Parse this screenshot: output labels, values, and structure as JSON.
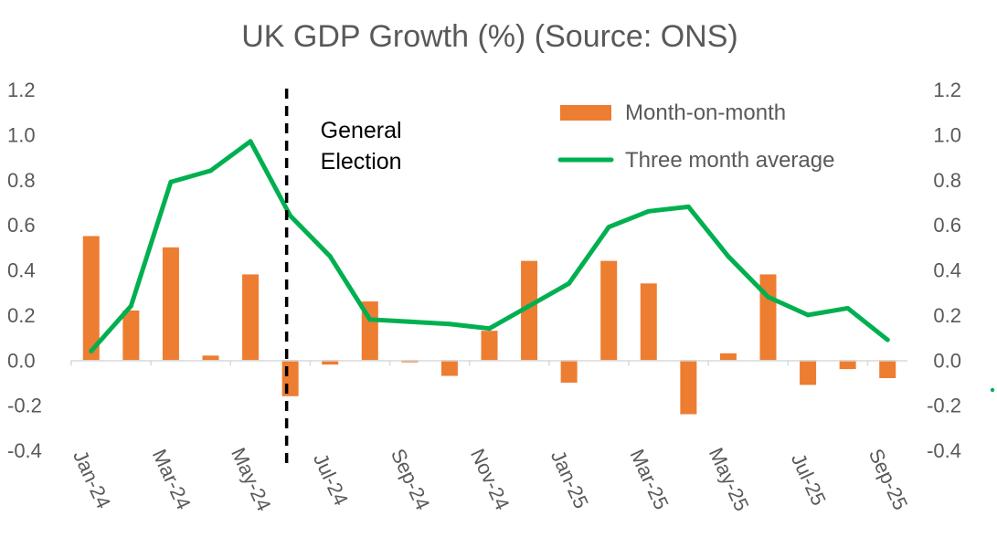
{
  "chart_data": {
    "type": "bar",
    "title": "UK GDP Growth (%) (Source: ONS)",
    "xlabel": "",
    "ylabel": "",
    "ylim": [
      -0.4,
      1.2
    ],
    "y2lim": [
      -0.4,
      1.2
    ],
    "yticks": [
      "1.2",
      "1.0",
      "0.8",
      "0.6",
      "0.4",
      "0.2",
      "0.0",
      "-0.2",
      "-0.4"
    ],
    "categories": [
      "Jan-24",
      "Feb-24",
      "Mar-24",
      "Apr-24",
      "May-24",
      "Jun-24",
      "Jul-24",
      "Aug-24",
      "Sep-24",
      "Oct-24",
      "Nov-24",
      "Dec-24",
      "Jan-25",
      "Feb-25",
      "Mar-25",
      "Apr-25",
      "May-25",
      "Jun-25",
      "Jul-25",
      "Aug-25",
      "Sep-25"
    ],
    "x_tick_labels": [
      "Jan-24",
      "Mar-24",
      "May-24",
      "Jul-24",
      "Sep-24",
      "Nov-24",
      "Jan-25",
      "Mar-25",
      "May-25",
      "Jul-25",
      "Sep-25"
    ],
    "series": [
      {
        "name": "Month-on-month",
        "type": "bar",
        "color": "#ED7D31",
        "values": [
          0.55,
          0.22,
          0.5,
          0.02,
          0.38,
          -0.16,
          -0.02,
          0.26,
          -0.01,
          -0.07,
          0.13,
          0.44,
          -0.1,
          0.44,
          0.34,
          -0.24,
          0.03,
          0.38,
          -0.11,
          -0.04,
          -0.08
        ]
      },
      {
        "name": "Three month average",
        "type": "line",
        "color": "#00B050",
        "values": [
          0.04,
          0.24,
          0.79,
          0.84,
          0.97,
          0.64,
          0.46,
          0.18,
          0.17,
          0.16,
          0.14,
          0.24,
          0.34,
          0.59,
          0.66,
          0.68,
          0.46,
          0.28,
          0.2,
          0.23,
          0.09
        ]
      }
    ],
    "annotations": [
      {
        "text_lines": [
          "General",
          "Election"
        ],
        "at_category": "Jun-24",
        "style": "dashed-vertical-line"
      }
    ],
    "legend": "top-right",
    "grid": false
  }
}
